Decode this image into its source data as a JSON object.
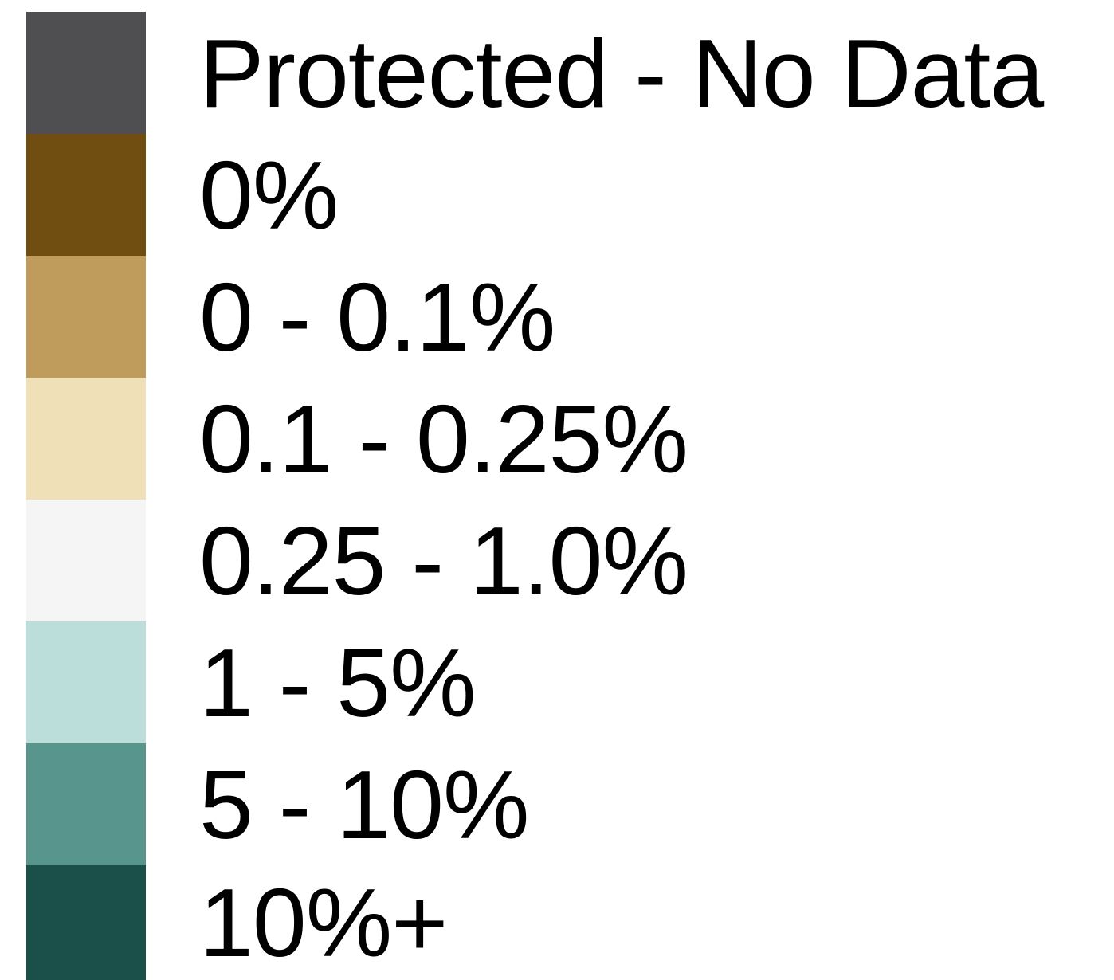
{
  "legend": {
    "items": [
      {
        "label": "Protected - No Data",
        "color": "#4f4f51"
      },
      {
        "label": "0%",
        "color": "#704d10"
      },
      {
        "label": "0 - 0.1%",
        "color": "#bf9b5c"
      },
      {
        "label": "0.1 - 0.25%",
        "color": "#f0e0b8"
      },
      {
        "label": "0.25 - 1.0%",
        "color": "#f5f5f5"
      },
      {
        "label": "1 - 5%",
        "color": "#bcdeda"
      },
      {
        "label": "5 - 10%",
        "color": "#58958d"
      },
      {
        "label": "10%+",
        "color": "#1b4f49"
      }
    ]
  }
}
